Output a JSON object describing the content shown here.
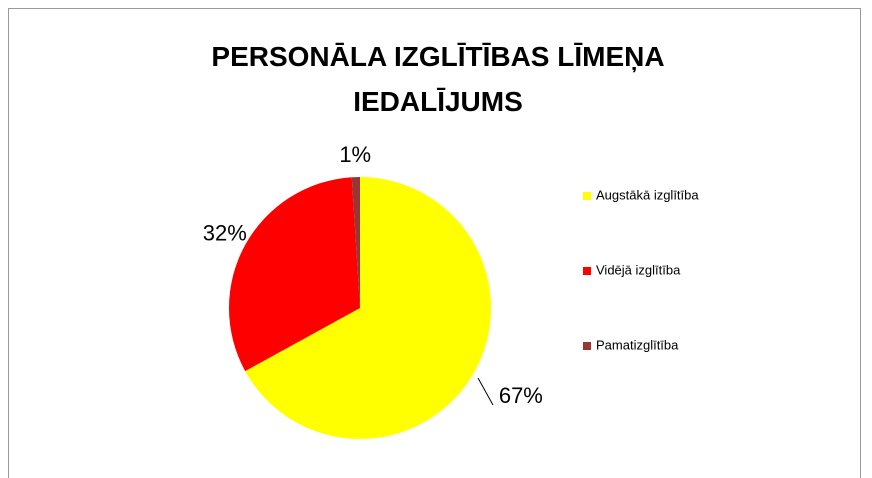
{
  "chart_data": {
    "type": "pie",
    "title": "PERSONĀLA IZGLĪTĪBAS LĪMEŅA IEDALĪJUMS",
    "categories": [
      "Augstākā izglītība",
      "Vidējā izglītība",
      "Pamatizglītība"
    ],
    "values": [
      67,
      32,
      1
    ],
    "value_labels": [
      "67%",
      "32%",
      "1%"
    ],
    "colors": [
      "#ffff00",
      "#ff0000",
      "#953735"
    ],
    "legend": "right"
  }
}
